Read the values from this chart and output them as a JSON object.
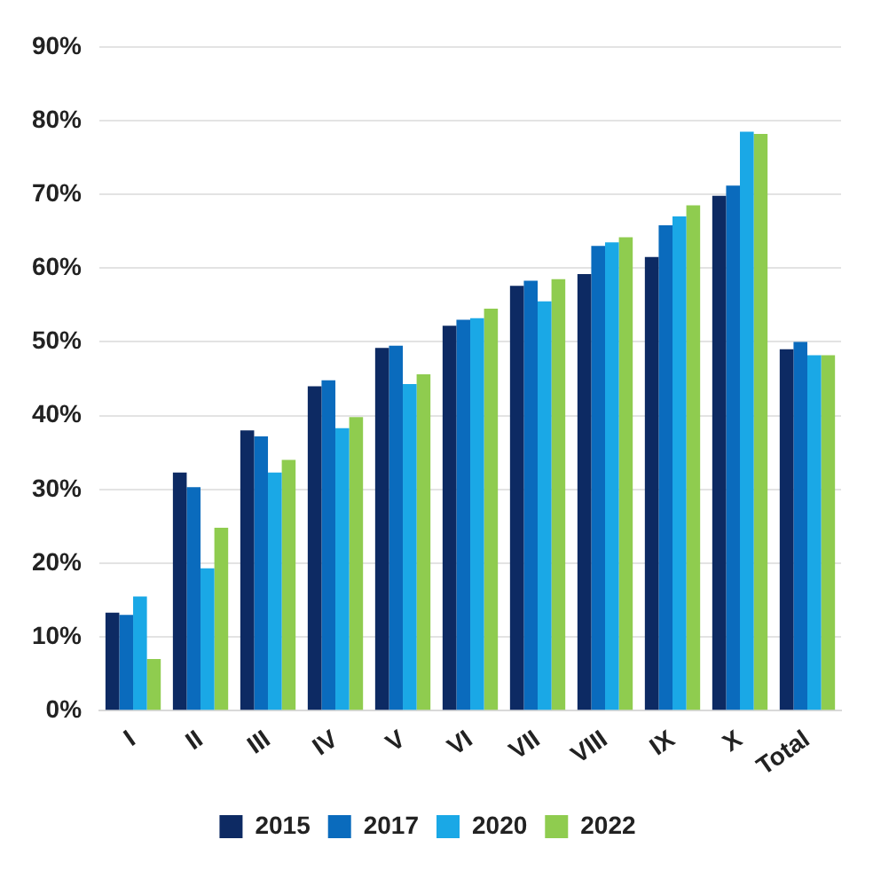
{
  "chart_data": {
    "type": "bar",
    "categories": [
      "I",
      "II",
      "III",
      "IV",
      "V",
      "VI",
      "VII",
      "VIII",
      "IX",
      "X",
      "Total"
    ],
    "series": [
      {
        "name": "2015",
        "color": "#0d2a63",
        "values": [
          13.3,
          32.3,
          38,
          44,
          49.2,
          52.2,
          57.6,
          59.2,
          61.5,
          69.8,
          49
        ]
      },
      {
        "name": "2017",
        "color": "#0a6bbd",
        "values": [
          13,
          30.3,
          37.2,
          44.8,
          49.5,
          53,
          58.3,
          63,
          65.8,
          71.2,
          50
        ]
      },
      {
        "name": "2020",
        "color": "#1aa8e6",
        "values": [
          15.5,
          19.3,
          32.3,
          38.3,
          44.3,
          53.2,
          55.5,
          63.5,
          67,
          78.5,
          48.2
        ]
      },
      {
        "name": "2022",
        "color": "#8fcc4f",
        "values": [
          7,
          24.8,
          34,
          39.8,
          45.6,
          54.5,
          58.5,
          64.2,
          68.5,
          78.2,
          48.2
        ]
      }
    ],
    "ylim": [
      0,
      90
    ],
    "yticks": [
      {
        "value": 0,
        "label": "0%"
      },
      {
        "value": 10,
        "label": "10%"
      },
      {
        "value": 20,
        "label": "20%"
      },
      {
        "value": 30,
        "label": "30%"
      },
      {
        "value": 40,
        "label": "40%"
      },
      {
        "value": 50,
        "label": "50%"
      },
      {
        "value": 60,
        "label": "60%"
      },
      {
        "value": 70,
        "label": "70%"
      },
      {
        "value": 80,
        "label": "80%"
      },
      {
        "value": 90,
        "label": "90%"
      }
    ],
    "grid": "y",
    "legend": "bottom"
  }
}
